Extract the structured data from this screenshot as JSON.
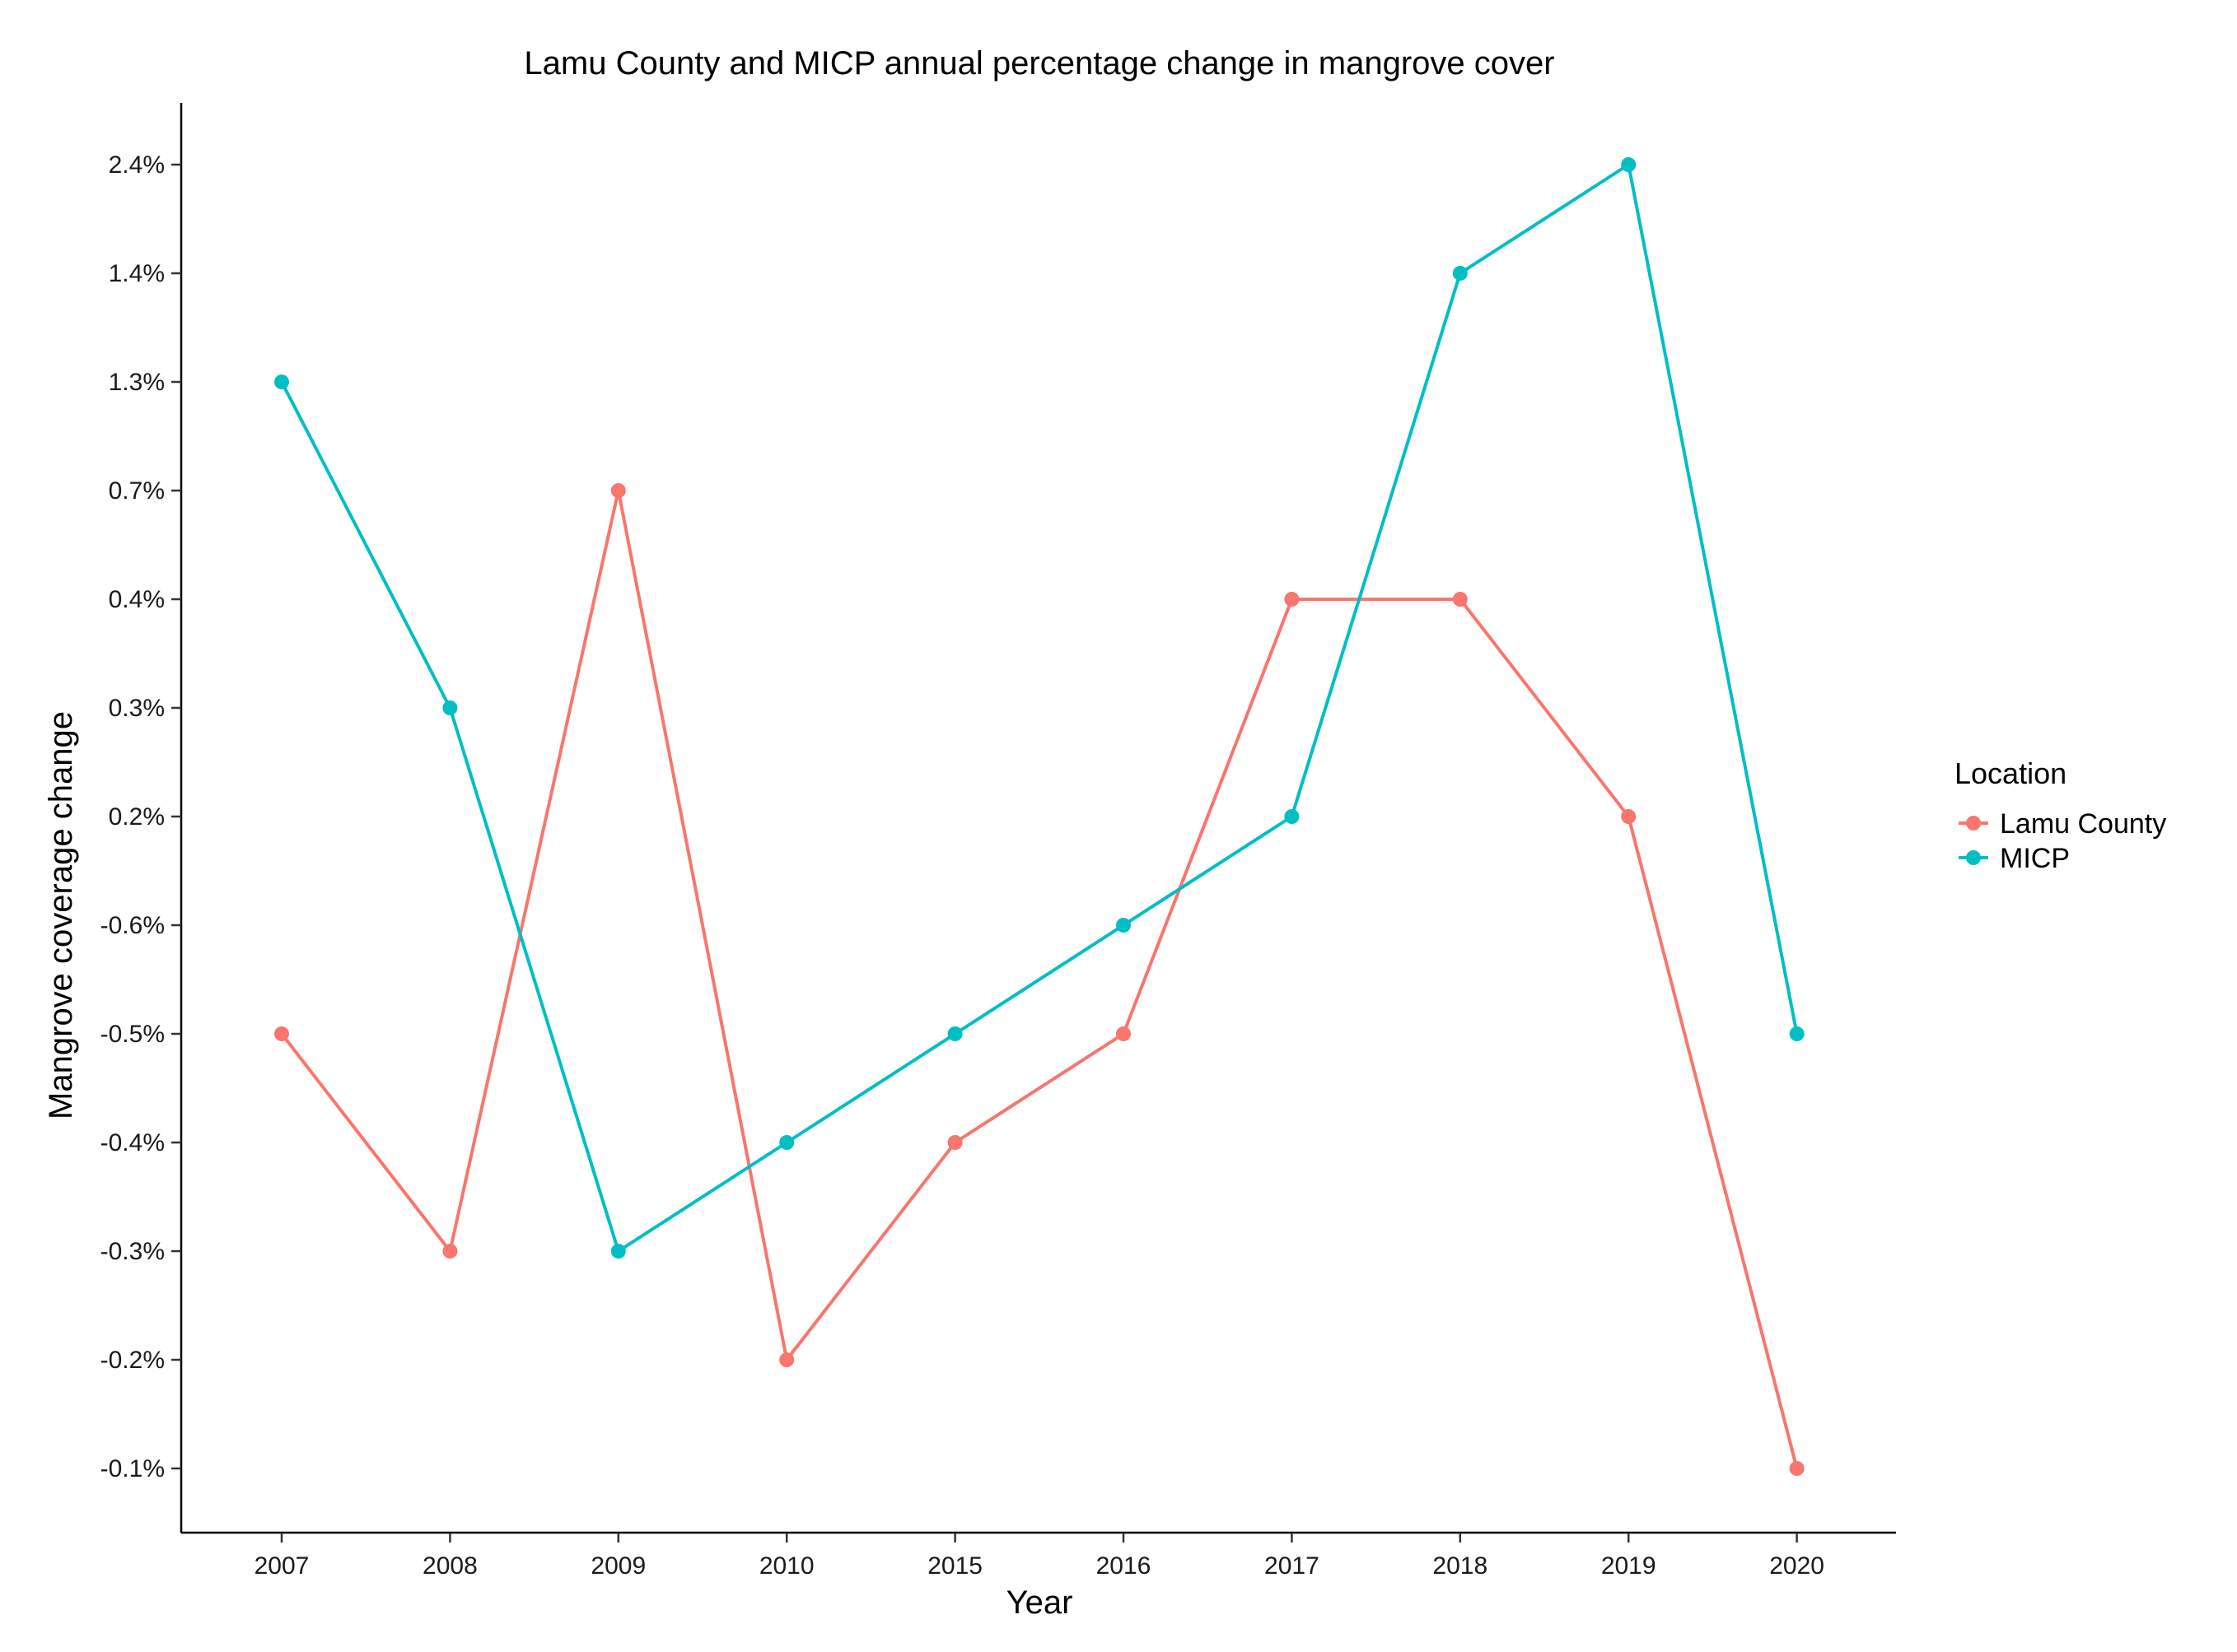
{
  "chart_data": {
    "type": "line",
    "title": "Lamu County and MICP annual percentage change in mangrove cover",
    "xlabel": "Year",
    "ylabel": "Mangrove coverage change",
    "categories": [
      "2007",
      "2008",
      "2009",
      "2010",
      "2015",
      "2016",
      "2017",
      "2018",
      "2019",
      "2020"
    ],
    "y_categories": [
      "-0.1%",
      "-0.2%",
      "-0.3%",
      "-0.4%",
      "-0.5%",
      "-0.6%",
      "0.2%",
      "0.3%",
      "0.4%",
      "0.7%",
      "1.3%",
      "1.4%",
      "2.4%"
    ],
    "series": [
      {
        "name": "Lamu County",
        "color": "#F8766D",
        "values": [
          "-0.5%",
          "-0.3%",
          "0.7%",
          "-0.2%",
          "-0.4%",
          "-0.5%",
          "0.4%",
          "0.4%",
          "0.2%",
          "-0.1%"
        ]
      },
      {
        "name": "MICP",
        "color": "#00BFC4",
        "values": [
          "1.3%",
          "0.3%",
          "-0.3%",
          "-0.4%",
          "-0.5%",
          "-0.6%",
          "0.2%",
          "1.4%",
          "2.4%",
          "-0.5%"
        ]
      }
    ],
    "legend": {
      "title": "Location",
      "placement": "right"
    },
    "grid": false
  }
}
